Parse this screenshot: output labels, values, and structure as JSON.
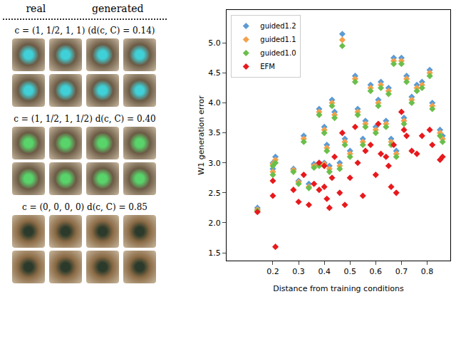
{
  "panels": {
    "headers": [
      "real",
      "generated"
    ],
    "conditions": [
      "c = (1, 1/2, 1, 1)  (d(c, C) = 0.14)",
      "c = (1, 1/2, 1, 1/2)  d(c, C) = 0.40",
      "c = (0, 0, 0, 0)  d(c, C) = 0.85"
    ]
  },
  "chart_data": {
    "type": "scatter",
    "xlabel": "Distance from training conditions",
    "ylabel": "W1 generation error",
    "xlim": [
      0.02,
      0.89
    ],
    "xticks": [
      0.2,
      0.3,
      0.4,
      0.5,
      0.6,
      0.7,
      0.8
    ],
    "ylim": [
      1.37,
      5.55
    ],
    "yticks": [
      1.5,
      2.0,
      2.5,
      3.0,
      3.5,
      4.0,
      4.5,
      5.0
    ],
    "grid": false,
    "legend": "upper left",
    "x": [
      0.14,
      0.2,
      0.21,
      0.2,
      0.28,
      0.3,
      0.32,
      0.34,
      0.36,
      0.38,
      0.38,
      0.4,
      0.4,
      0.41,
      0.42,
      0.43,
      0.44,
      0.46,
      0.47,
      0.48,
      0.5,
      0.52,
      0.53,
      0.55,
      0.56,
      0.58,
      0.6,
      0.61,
      0.62,
      0.64,
      0.65,
      0.66,
      0.67,
      0.68,
      0.7,
      0.71,
      0.72,
      0.74,
      0.76,
      0.78,
      0.81,
      0.82,
      0.85,
      0.86
    ],
    "series": [
      {
        "name": "guided1.2",
        "color": "#5b9bd5",
        "marker": "diamond",
        "values": [
          2.25,
          3.0,
          3.1,
          2.9,
          2.9,
          2.7,
          3.45,
          2.65,
          2.98,
          3.0,
          3.9,
          3.0,
          3.6,
          3.3,
          2.95,
          4.05,
          3.85,
          3.0,
          5.15,
          3.4,
          3.2,
          4.45,
          3.9,
          3.4,
          3.7,
          4.3,
          3.6,
          4.05,
          4.35,
          3.7,
          4.25,
          3.4,
          4.75,
          3.2,
          4.75,
          3.75,
          4.45,
          4.1,
          4.3,
          4.35,
          4.55,
          4.0,
          3.55,
          3.45
        ]
      },
      {
        "name": "guided1.1",
        "color": "#f5a04a",
        "marker": "diamond",
        "values": [
          2.22,
          2.98,
          3.05,
          2.85,
          2.88,
          2.68,
          3.4,
          2.6,
          2.95,
          2.98,
          3.85,
          2.98,
          3.55,
          3.25,
          2.9,
          4.0,
          3.8,
          2.95,
          5.05,
          3.35,
          3.15,
          4.4,
          3.85,
          3.35,
          3.65,
          4.25,
          3.55,
          4.0,
          4.3,
          3.65,
          4.2,
          3.35,
          4.7,
          3.15,
          4.7,
          3.7,
          4.4,
          4.05,
          4.25,
          4.3,
          4.5,
          3.95,
          3.5,
          3.4
        ]
      },
      {
        "name": "guided1.0",
        "color": "#6abf4b",
        "marker": "diamond",
        "values": [
          2.2,
          2.95,
          3.0,
          2.8,
          2.85,
          2.65,
          3.35,
          2.58,
          2.92,
          2.95,
          3.8,
          2.95,
          3.5,
          3.2,
          2.85,
          3.95,
          3.75,
          2.9,
          4.95,
          3.3,
          3.1,
          4.35,
          3.8,
          3.3,
          3.6,
          4.2,
          3.5,
          3.95,
          4.25,
          3.6,
          4.15,
          3.3,
          4.65,
          3.1,
          4.65,
          3.65,
          4.35,
          4.0,
          4.2,
          4.25,
          4.45,
          3.9,
          3.45,
          3.35
        ]
      },
      {
        "name": "EFM",
        "color": "#e8191c",
        "marker": "diamond",
        "values": [
          2.18,
          2.45,
          1.6,
          2.7,
          2.55,
          2.35,
          2.8,
          2.3,
          2.65,
          2.55,
          3.0,
          2.95,
          2.6,
          2.4,
          2.25,
          2.75,
          3.1,
          2.5,
          3.5,
          2.3,
          2.75,
          3.6,
          3.0,
          2.45,
          3.2,
          3.3,
          2.8,
          3.65,
          3.15,
          3.1,
          2.95,
          2.6,
          3.3,
          2.5,
          3.85,
          3.55,
          3.45,
          3.2,
          3.15,
          3.45,
          3.55,
          3.3,
          3.05,
          3.1
        ]
      }
    ]
  }
}
